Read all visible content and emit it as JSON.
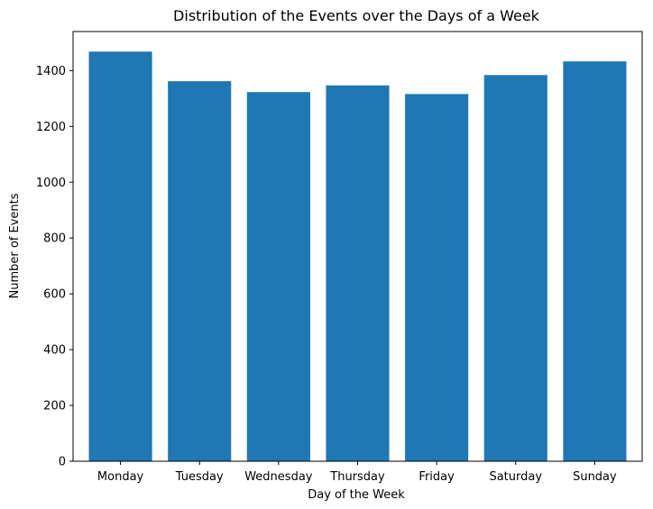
{
  "chart_data": {
    "type": "bar",
    "title": "Distribution of the Events over the Days of a Week",
    "xlabel": "Day of the Week",
    "ylabel": "Number of Events",
    "categories": [
      "Monday",
      "Tuesday",
      "Wednesday",
      "Thursday",
      "Friday",
      "Saturday",
      "Sunday"
    ],
    "values": [
      1468,
      1362,
      1323,
      1347,
      1316,
      1384,
      1433
    ],
    "ylim": [
      0,
      1540
    ],
    "yticks": [
      0,
      200,
      400,
      600,
      800,
      1000,
      1200,
      1400
    ],
    "grid": false,
    "legend": "none",
    "bar_color": "#1f77b4"
  }
}
